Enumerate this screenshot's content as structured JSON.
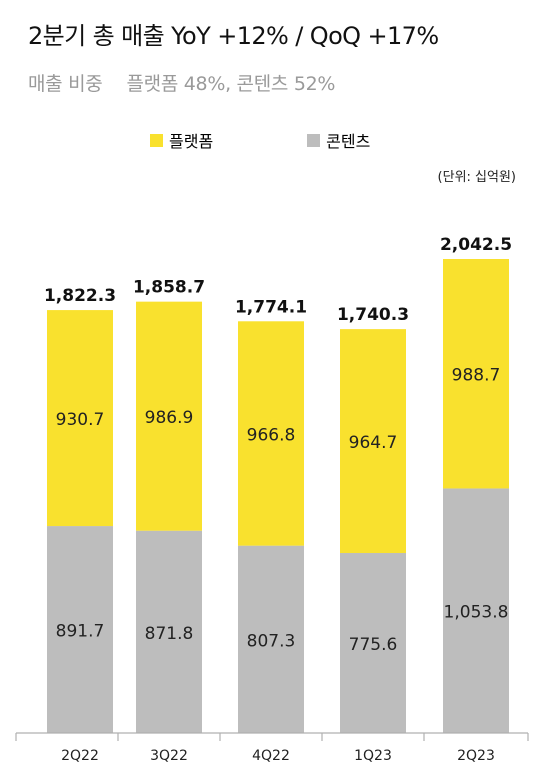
{
  "header": {
    "title": "2분기 총 매출  YoY +12% / QoQ +17%",
    "subtitle_label": "매출 비중",
    "subtitle_value": "플랫폼 48%, 콘텐츠 52%"
  },
  "unit_note": "(단위: 십억원)",
  "colors": {
    "platform": "#f9e12e",
    "content": "#bdbdbd",
    "axis": "#b0b0b0"
  },
  "chart_data": {
    "type": "bar",
    "stacked": true,
    "categories": [
      "2Q22",
      "3Q22",
      "4Q22",
      "1Q23",
      "2Q23"
    ],
    "series": [
      {
        "name": "콘텐츠",
        "values": [
          891.7,
          871.8,
          807.3,
          775.6,
          1053.8
        ],
        "labels": [
          "891.7",
          "871.8",
          "807.3",
          "775.6",
          "1,053.8"
        ]
      },
      {
        "name": "플랫폼",
        "values": [
          930.7,
          986.9,
          966.8,
          964.7,
          988.7
        ],
        "labels": [
          "930.7",
          "986.9",
          "966.8",
          "964.7",
          "988.7"
        ]
      }
    ],
    "totals": [
      1822.3,
      1858.7,
      1774.1,
      1740.3,
      2042.5
    ],
    "total_labels": [
      "1,822.3",
      "1,858.7",
      "1,774.1",
      "1,740.3",
      "2,042.5"
    ],
    "ylim": [
      0,
      2042.5
    ],
    "legend": "top"
  }
}
